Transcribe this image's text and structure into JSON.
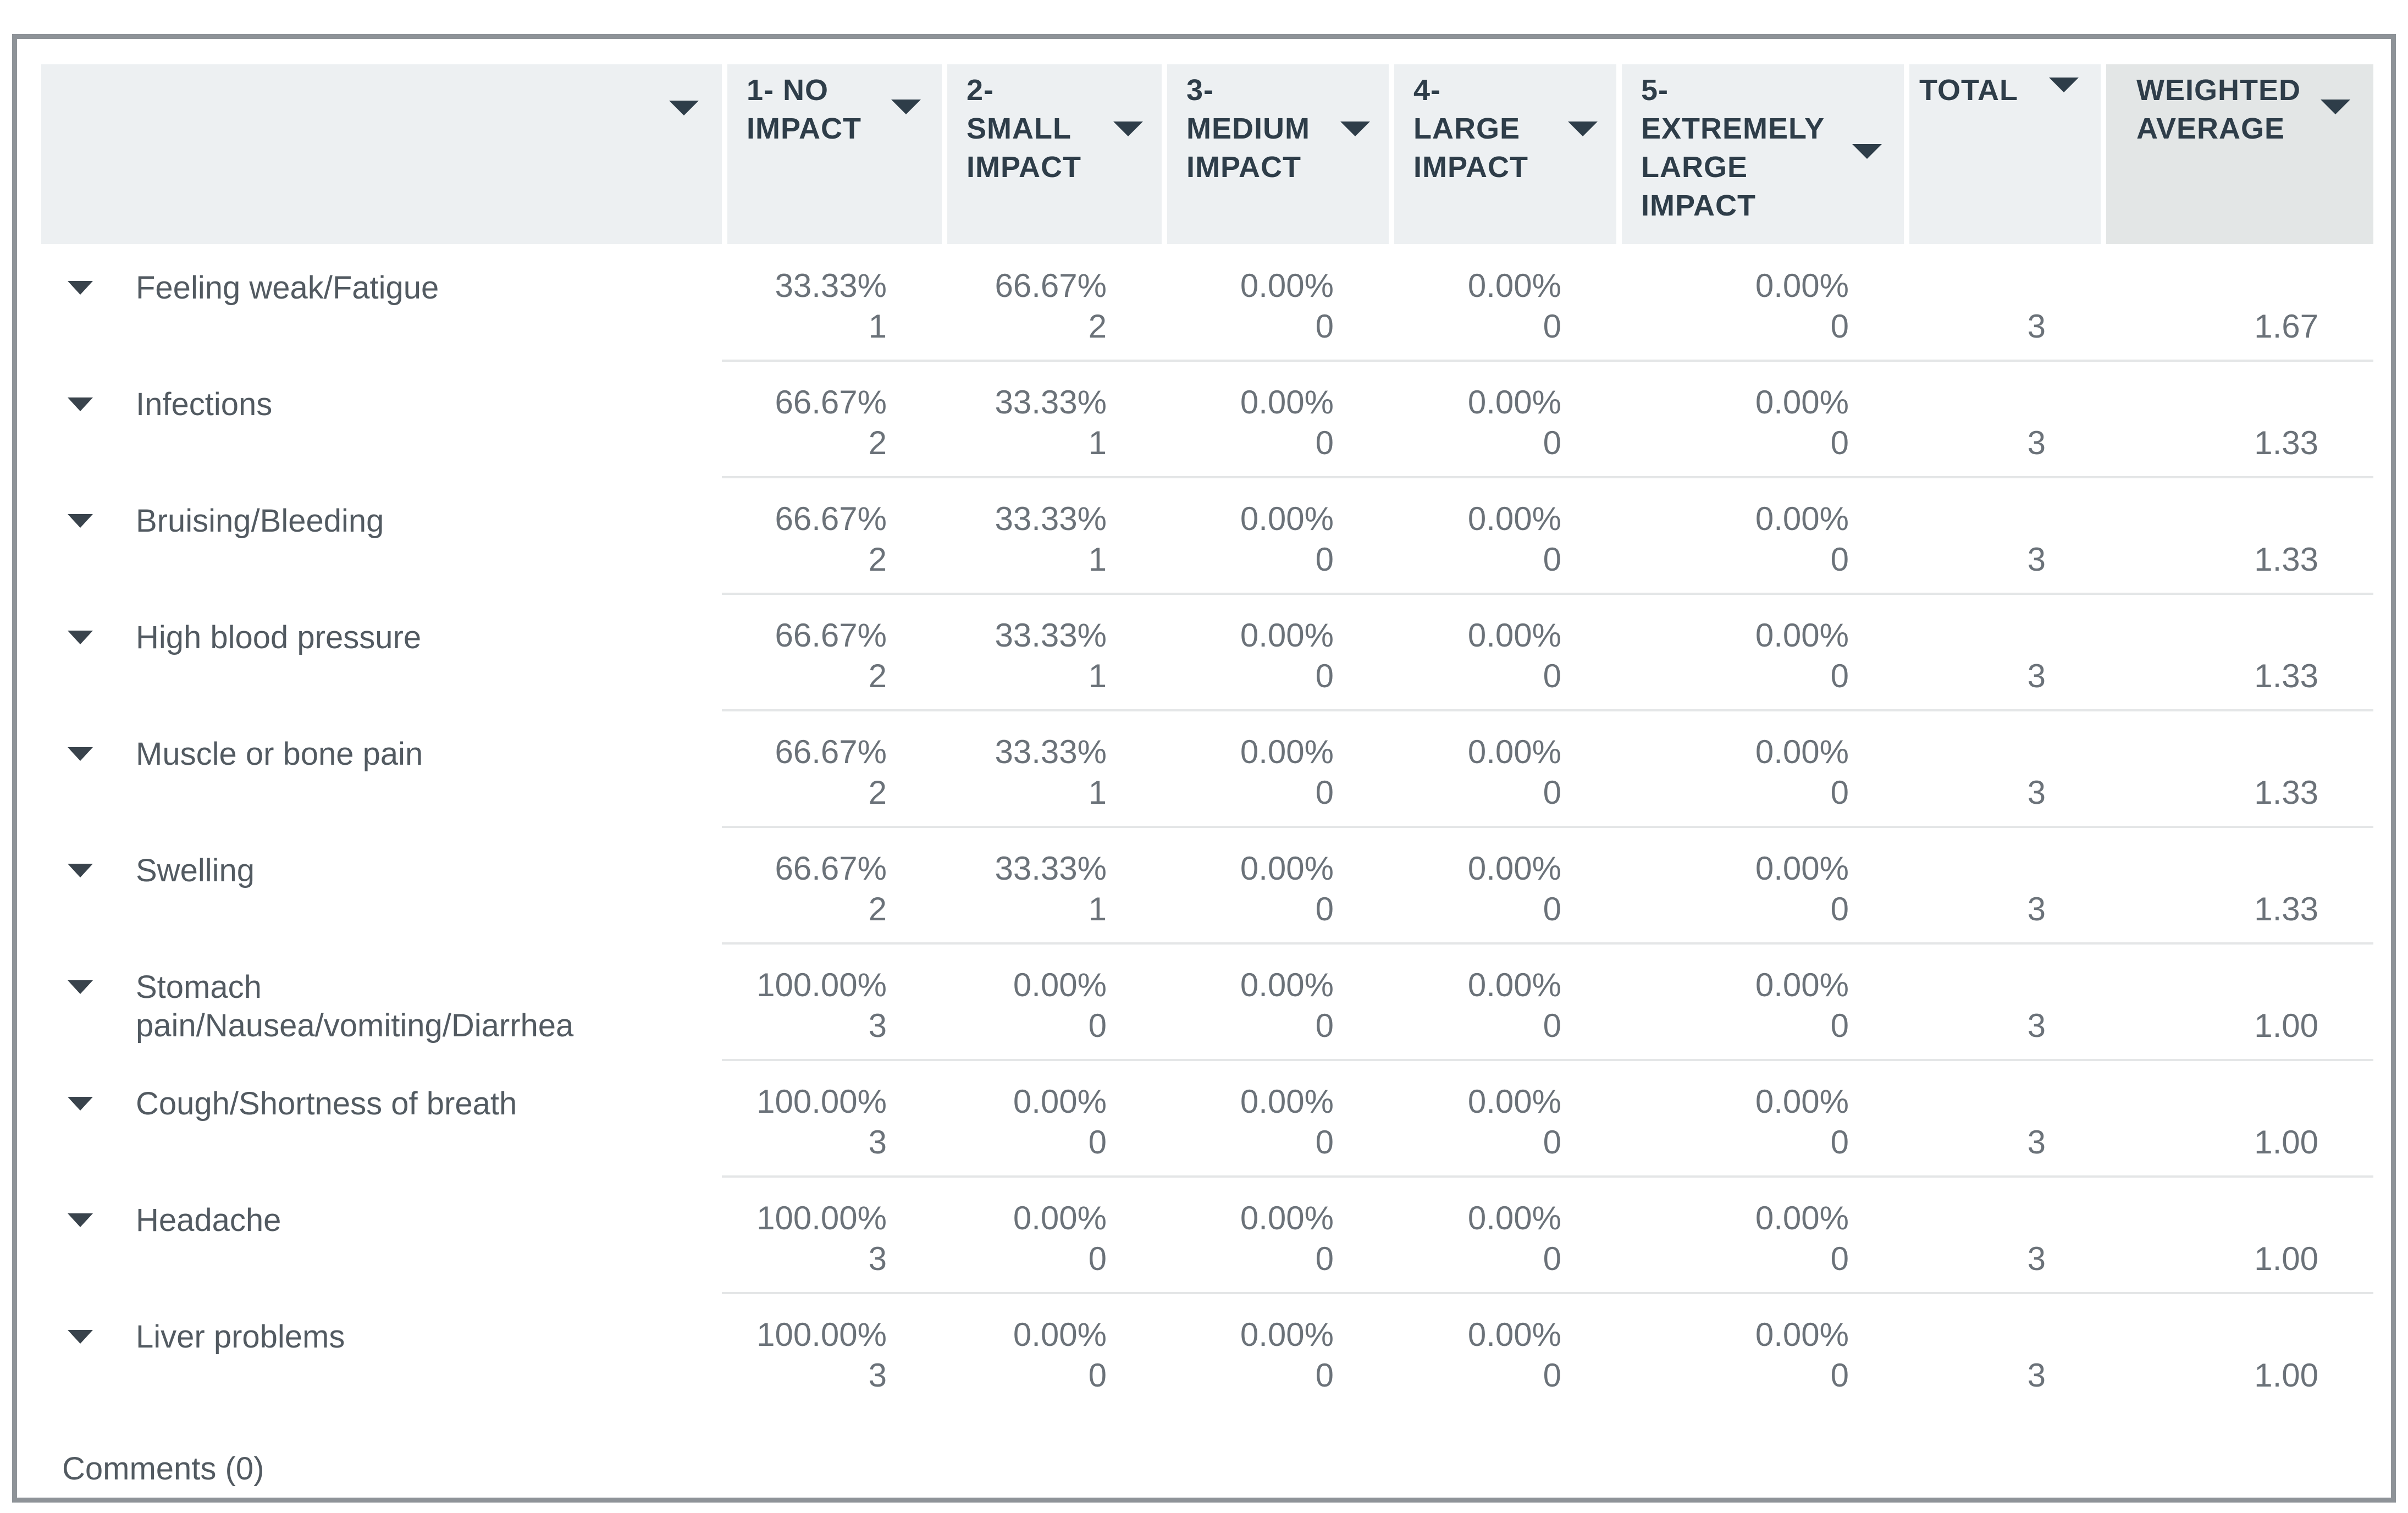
{
  "header": {
    "columns": [
      {
        "label": ""
      },
      {
        "label": "1- NO\nIMPACT"
      },
      {
        "label": "2-\nSMALL\nIMPACT"
      },
      {
        "label": "3-\nMEDIUM\nIMPACT"
      },
      {
        "label": "4-\nLARGE\nIMPACT"
      },
      {
        "label": "5-\nEXTREMELY\nLARGE\nIMPACT"
      },
      {
        "label": "TOTAL"
      },
      {
        "label": "WEIGHTED\nAVERAGE"
      }
    ]
  },
  "rows": [
    {
      "label": "Feeling weak/Fatigue",
      "percents": [
        "33.33%",
        "66.67%",
        "0.00%",
        "0.00%",
        "0.00%"
      ],
      "counts": [
        "1",
        "2",
        "0",
        "0",
        "0"
      ],
      "total": "3",
      "weighted_average": "1.67"
    },
    {
      "label": "Infections",
      "percents": [
        "66.67%",
        "33.33%",
        "0.00%",
        "0.00%",
        "0.00%"
      ],
      "counts": [
        "2",
        "1",
        "0",
        "0",
        "0"
      ],
      "total": "3",
      "weighted_average": "1.33"
    },
    {
      "label": "Bruising/Bleeding",
      "percents": [
        "66.67%",
        "33.33%",
        "0.00%",
        "0.00%",
        "0.00%"
      ],
      "counts": [
        "2",
        "1",
        "0",
        "0",
        "0"
      ],
      "total": "3",
      "weighted_average": "1.33"
    },
    {
      "label": "High blood pressure",
      "percents": [
        "66.67%",
        "33.33%",
        "0.00%",
        "0.00%",
        "0.00%"
      ],
      "counts": [
        "2",
        "1",
        "0",
        "0",
        "0"
      ],
      "total": "3",
      "weighted_average": "1.33"
    },
    {
      "label": "Muscle or bone pain",
      "percents": [
        "66.67%",
        "33.33%",
        "0.00%",
        "0.00%",
        "0.00%"
      ],
      "counts": [
        "2",
        "1",
        "0",
        "0",
        "0"
      ],
      "total": "3",
      "weighted_average": "1.33"
    },
    {
      "label": "Swelling",
      "percents": [
        "66.67%",
        "33.33%",
        "0.00%",
        "0.00%",
        "0.00%"
      ],
      "counts": [
        "2",
        "1",
        "0",
        "0",
        "0"
      ],
      "total": "3",
      "weighted_average": "1.33"
    },
    {
      "label": "Stomach\npain/Nausea/vomiting/Diarrhea",
      "percents": [
        "100.00%",
        "0.00%",
        "0.00%",
        "0.00%",
        "0.00%"
      ],
      "counts": [
        "3",
        "0",
        "0",
        "0",
        "0"
      ],
      "total": "3",
      "weighted_average": "1.00"
    },
    {
      "label": "Cough/Shortness of breath",
      "percents": [
        "100.00%",
        "0.00%",
        "0.00%",
        "0.00%",
        "0.00%"
      ],
      "counts": [
        "3",
        "0",
        "0",
        "0",
        "0"
      ],
      "total": "3",
      "weighted_average": "1.00"
    },
    {
      "label": "Headache",
      "percents": [
        "100.00%",
        "0.00%",
        "0.00%",
        "0.00%",
        "0.00%"
      ],
      "counts": [
        "3",
        "0",
        "0",
        "0",
        "0"
      ],
      "total": "3",
      "weighted_average": "1.00"
    },
    {
      "label": "Liver problems",
      "percents": [
        "100.00%",
        "0.00%",
        "0.00%",
        "0.00%",
        "0.00%"
      ],
      "counts": [
        "3",
        "0",
        "0",
        "0",
        "0"
      ],
      "total": "3",
      "weighted_average": "1.00"
    }
  ],
  "comments_label": "Comments (0)",
  "chart_data": {
    "type": "table",
    "title": "Impact ratings by symptom",
    "categories": [
      "1- NO IMPACT",
      "2- SMALL IMPACT",
      "3- MEDIUM IMPACT",
      "4- LARGE IMPACT",
      "5- EXTREMELY LARGE IMPACT"
    ],
    "series": [
      {
        "name": "Feeling weak/Fatigue",
        "values": [
          1,
          2,
          0,
          0,
          0
        ],
        "total": 3,
        "weighted_average": 1.67
      },
      {
        "name": "Infections",
        "values": [
          2,
          1,
          0,
          0,
          0
        ],
        "total": 3,
        "weighted_average": 1.33
      },
      {
        "name": "Bruising/Bleeding",
        "values": [
          2,
          1,
          0,
          0,
          0
        ],
        "total": 3,
        "weighted_average": 1.33
      },
      {
        "name": "High blood pressure",
        "values": [
          2,
          1,
          0,
          0,
          0
        ],
        "total": 3,
        "weighted_average": 1.33
      },
      {
        "name": "Muscle or bone pain",
        "values": [
          2,
          1,
          0,
          0,
          0
        ],
        "total": 3,
        "weighted_average": 1.33
      },
      {
        "name": "Swelling",
        "values": [
          2,
          1,
          0,
          0,
          0
        ],
        "total": 3,
        "weighted_average": 1.33
      },
      {
        "name": "Stomach pain/Nausea/vomiting/Diarrhea",
        "values": [
          3,
          0,
          0,
          0,
          0
        ],
        "total": 3,
        "weighted_average": 1.0
      },
      {
        "name": "Cough/Shortness of breath",
        "values": [
          3,
          0,
          0,
          0,
          0
        ],
        "total": 3,
        "weighted_average": 1.0
      },
      {
        "name": "Headache",
        "values": [
          3,
          0,
          0,
          0,
          0
        ],
        "total": 3,
        "weighted_average": 1.0
      },
      {
        "name": "Liver problems",
        "values": [
          3,
          0,
          0,
          0,
          0
        ],
        "total": 3,
        "weighted_average": 1.0
      }
    ]
  },
  "colors": {
    "frame_border": "#8e9398",
    "header_bg": "#edf0f2",
    "weighted_header_bg": "#e3e6e6",
    "header_text": "#2e3d49",
    "row_label_text": "#525a61",
    "value_text": "#6b7279",
    "row_divider": "#e4e6e7"
  }
}
